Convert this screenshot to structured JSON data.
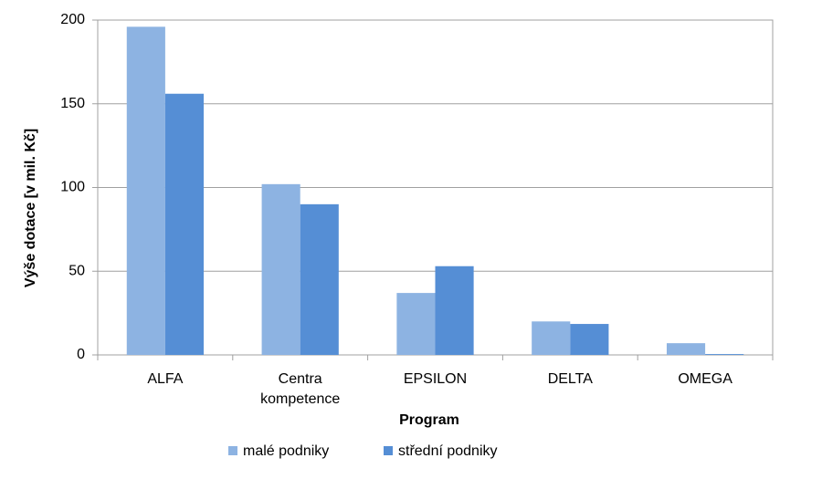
{
  "chart_data": {
    "type": "bar",
    "categories": [
      "ALFA",
      "Centra kompetence",
      "EPSILON",
      "DELTA",
      "OMEGA"
    ],
    "series": [
      {
        "name": "malé podniky",
        "color": "#8db3e2",
        "values": [
          196,
          102,
          37,
          20,
          7
        ]
      },
      {
        "name": "střední podniky",
        "color": "#558ed5",
        "values": [
          156,
          90,
          53,
          18.5,
          0.5
        ]
      }
    ],
    "y_label": "Výše dotace [v mil. Kč]",
    "x_label": "Program",
    "ylim": [
      0,
      200
    ],
    "yticks": [
      0,
      50,
      100,
      150,
      200
    ],
    "grid": true,
    "legend": "bottom"
  }
}
